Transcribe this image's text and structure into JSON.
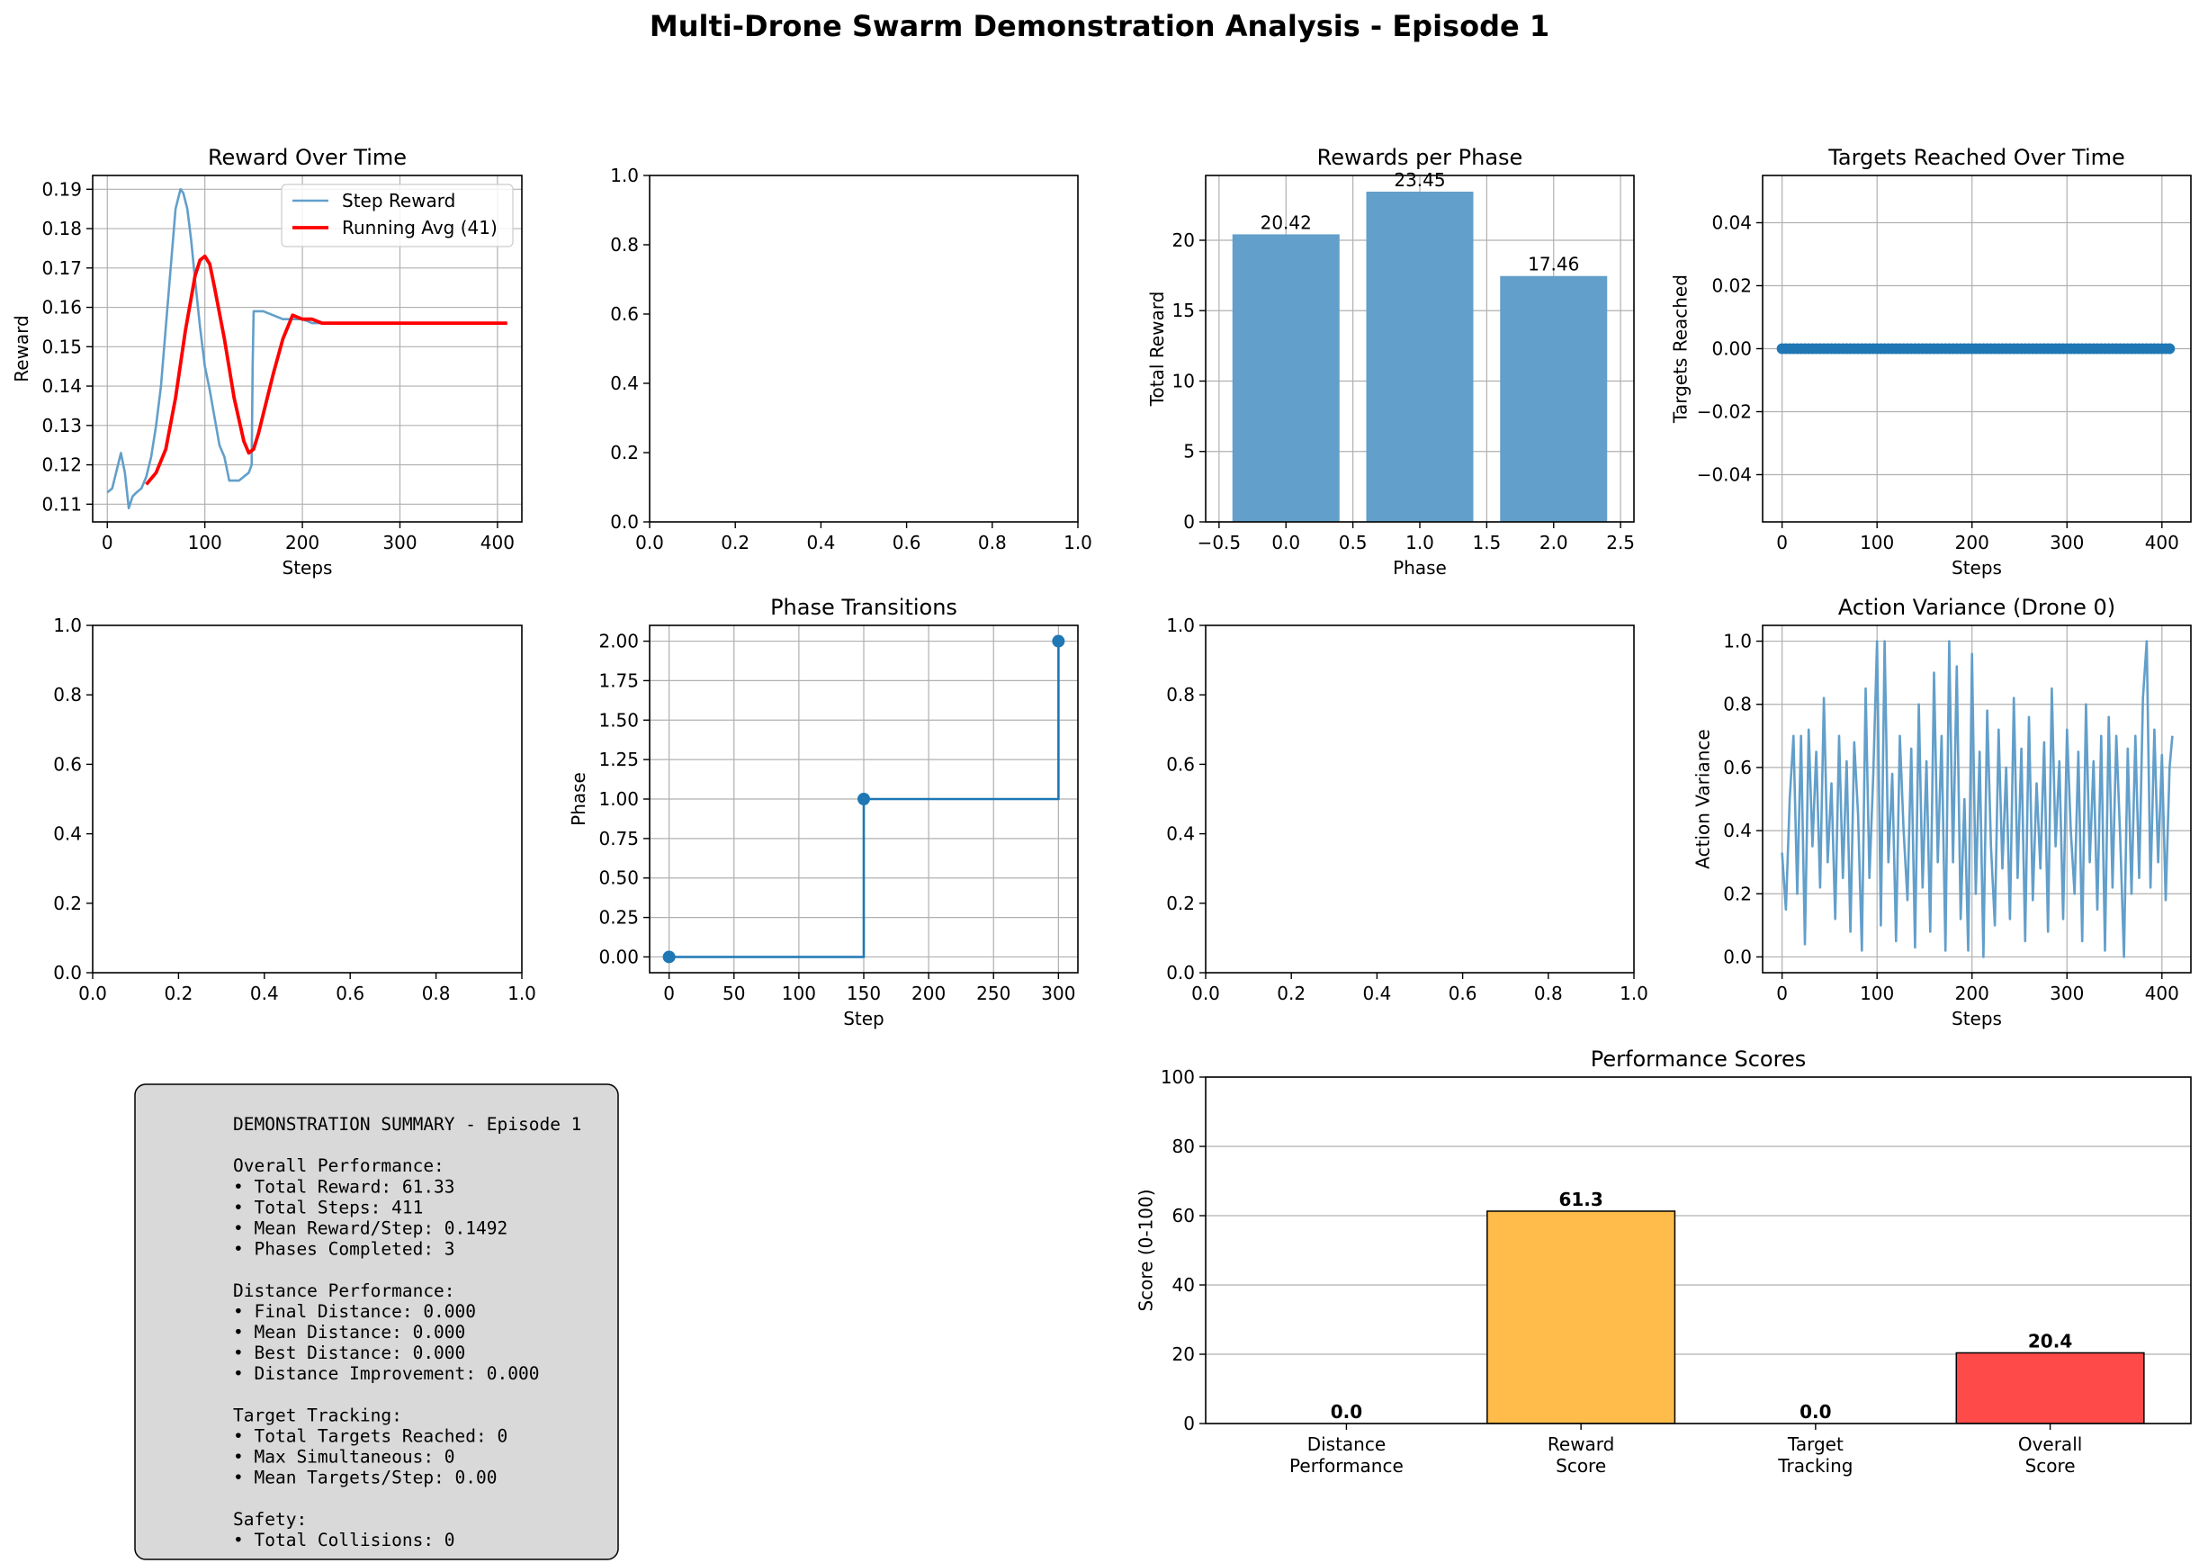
{
  "figure_title": "Multi-Drone Swarm Demonstration Analysis - Episode 1",
  "colors": {
    "blue": "#1f77b4",
    "blue_alpha": "#629fca",
    "red": "#ff0000",
    "grid": "#b0b0b0",
    "summary_bg": "#d9d9d9",
    "orange": "#ffbc4a",
    "score_red": "#ff4a4a"
  },
  "chart_data": [
    {
      "type": "line",
      "title": "Reward Over Time",
      "xlabel": "Steps",
      "ylabel": "Reward",
      "xlim": [
        -15,
        425
      ],
      "ylim": [
        0.1055,
        0.1935
      ],
      "xticks": [
        0,
        100,
        200,
        300,
        400
      ],
      "xtick_labels": [
        "0",
        "100",
        "200",
        "300",
        "400"
      ],
      "yticks": [
        0.11,
        0.12,
        0.13,
        0.14,
        0.15,
        0.16,
        0.17,
        0.18,
        0.19
      ],
      "ytick_labels": [
        "0.11",
        "0.12",
        "0.13",
        "0.14",
        "0.15",
        "0.16",
        "0.17",
        "0.18",
        "0.19"
      ],
      "grid": true,
      "legend": "top-right",
      "series": [
        {
          "name": "Step Reward",
          "color": "#1f77b4",
          "x": [
            0,
            5,
            10,
            14,
            18,
            22,
            26,
            30,
            35,
            40,
            45,
            50,
            55,
            60,
            65,
            70,
            75,
            78,
            82,
            86,
            90,
            95,
            100,
            105,
            110,
            115,
            120,
            125,
            130,
            135,
            140,
            145,
            148,
            149,
            150,
            155,
            160,
            170,
            180,
            190,
            200,
            210,
            220,
            230,
            240,
            260,
            280,
            300,
            330,
            360,
            390,
            410
          ],
          "y": [
            0.113,
            0.114,
            0.119,
            0.123,
            0.118,
            0.109,
            0.112,
            0.113,
            0.114,
            0.117,
            0.122,
            0.13,
            0.14,
            0.155,
            0.17,
            0.185,
            0.19,
            0.189,
            0.185,
            0.177,
            0.167,
            0.155,
            0.145,
            0.139,
            0.132,
            0.125,
            0.122,
            0.116,
            0.116,
            0.116,
            0.117,
            0.118,
            0.12,
            0.145,
            0.159,
            0.159,
            0.159,
            0.158,
            0.157,
            0.157,
            0.157,
            0.156,
            0.156,
            0.156,
            0.156,
            0.156,
            0.156,
            0.156,
            0.156,
            0.156,
            0.156,
            0.156
          ]
        },
        {
          "name": "Running Avg (41)",
          "color": "#ff0000",
          "x": [
            40,
            50,
            60,
            70,
            80,
            90,
            95,
            100,
            105,
            110,
            120,
            130,
            140,
            145,
            150,
            155,
            160,
            170,
            180,
            190,
            200,
            210,
            220,
            240,
            260,
            300,
            350,
            410
          ],
          "y": [
            0.115,
            0.118,
            0.124,
            0.137,
            0.154,
            0.168,
            0.172,
            0.173,
            0.171,
            0.165,
            0.152,
            0.137,
            0.126,
            0.123,
            0.124,
            0.128,
            0.133,
            0.143,
            0.152,
            0.158,
            0.157,
            0.157,
            0.156,
            0.156,
            0.156,
            0.156,
            0.156,
            0.156
          ]
        }
      ]
    },
    {
      "type": "empty",
      "xlim": [
        0,
        1
      ],
      "ylim": [
        0,
        1
      ],
      "xticks": [
        0,
        0.2,
        0.4,
        0.6,
        0.8,
        1.0
      ],
      "xtick_labels": [
        "0.0",
        "0.2",
        "0.4",
        "0.6",
        "0.8",
        "1.0"
      ],
      "yticks": [
        0,
        0.2,
        0.4,
        0.6,
        0.8,
        1.0
      ],
      "ytick_labels": [
        "0.0",
        "0.2",
        "0.4",
        "0.6",
        "0.8",
        "1.0"
      ],
      "grid": false
    },
    {
      "type": "bar",
      "title": "Rewards per Phase",
      "xlabel": "Phase",
      "ylabel": "Total Reward",
      "categories": [
        0,
        1,
        2
      ],
      "values": [
        20.42,
        23.45,
        17.46
      ],
      "value_labels": [
        "20.42",
        "23.45",
        "17.46"
      ],
      "xlim": [
        -0.6,
        2.6
      ],
      "ylim": [
        0,
        24.6
      ],
      "xticks": [
        -0.5,
        0.0,
        0.5,
        1.0,
        1.5,
        2.0,
        2.5
      ],
      "xtick_labels": [
        "−0.5",
        "0.0",
        "0.5",
        "1.0",
        "1.5",
        "2.0",
        "2.5"
      ],
      "yticks": [
        0,
        5,
        10,
        15,
        20
      ],
      "ytick_labels": [
        "0",
        "5",
        "10",
        "15",
        "20"
      ],
      "grid": true
    },
    {
      "type": "line",
      "title": "Targets Reached Over Time",
      "xlabel": "Steps",
      "ylabel": "Targets Reached",
      "xlim": [
        -20.5,
        430.5
      ],
      "ylim": [
        -0.055,
        0.055
      ],
      "xticks": [
        0,
        100,
        200,
        300,
        400
      ],
      "xtick_labels": [
        "0",
        "100",
        "200",
        "300",
        "400"
      ],
      "yticks": [
        -0.04,
        -0.02,
        0.0,
        0.02,
        0.04
      ],
      "ytick_labels": [
        "−0.04",
        "−0.02",
        "0.00",
        "0.02",
        "0.04"
      ],
      "grid": true,
      "series": [
        {
          "color": "#1f77b4",
          "x_range": [
            0,
            410
          ],
          "value": 0,
          "markers": true
        }
      ]
    },
    {
      "type": "empty",
      "xlim": [
        0,
        1
      ],
      "ylim": [
        0,
        1
      ],
      "xticks": [
        0,
        0.2,
        0.4,
        0.6,
        0.8,
        1.0
      ],
      "xtick_labels": [
        "0.0",
        "0.2",
        "0.4",
        "0.6",
        "0.8",
        "1.0"
      ],
      "yticks": [
        0,
        0.2,
        0.4,
        0.6,
        0.8,
        1.0
      ],
      "ytick_labels": [
        "0.0",
        "0.2",
        "0.4",
        "0.6",
        "0.8",
        "1.0"
      ],
      "grid": false
    },
    {
      "type": "line",
      "title": "Phase Transitions",
      "xlabel": "Step",
      "ylabel": "Phase",
      "xlim": [
        -15,
        315
      ],
      "ylim": [
        -0.1,
        2.1
      ],
      "xticks": [
        0,
        50,
        100,
        150,
        200,
        250,
        300
      ],
      "xtick_labels": [
        "0",
        "50",
        "100",
        "150",
        "200",
        "250",
        "300"
      ],
      "yticks": [
        0,
        0.25,
        0.5,
        0.75,
        1.0,
        1.25,
        1.5,
        1.75,
        2.0
      ],
      "ytick_labels": [
        "0.00",
        "0.25",
        "0.50",
        "0.75",
        "1.00",
        "1.25",
        "1.50",
        "1.75",
        "2.00"
      ],
      "grid": true,
      "series": [
        {
          "color": "#1f77b4",
          "step": "post",
          "x": [
            0,
            150,
            300
          ],
          "y": [
            0,
            1,
            2
          ]
        }
      ]
    },
    {
      "type": "empty",
      "xlim": [
        0,
        1
      ],
      "ylim": [
        0,
        1
      ],
      "xticks": [
        0,
        0.2,
        0.4,
        0.6,
        0.8,
        1.0
      ],
      "xtick_labels": [
        "0.0",
        "0.2",
        "0.4",
        "0.6",
        "0.8",
        "1.0"
      ],
      "yticks": [
        0,
        0.2,
        0.4,
        0.6,
        0.8,
        1.0
      ],
      "ytick_labels": [
        "0.0",
        "0.2",
        "0.4",
        "0.6",
        "0.8",
        "1.0"
      ],
      "grid": false
    },
    {
      "type": "line",
      "title": "Action Variance (Drone 0)",
      "xlabel": "Steps",
      "ylabel": "Action Variance",
      "xlim": [
        -20.5,
        430.5
      ],
      "ylim": [
        -0.05,
        1.05
      ],
      "xticks": [
        0,
        100,
        200,
        300,
        400
      ],
      "xtick_labels": [
        "0",
        "100",
        "200",
        "300",
        "400"
      ],
      "yticks": [
        0,
        0.2,
        0.4,
        0.6,
        0.8,
        1.0
      ],
      "ytick_labels": [
        "0.0",
        "0.2",
        "0.4",
        "0.6",
        "0.8",
        "1.0"
      ],
      "grid": true,
      "series": [
        {
          "color": "#1f77b4",
          "x": [
            0,
            4,
            8,
            12,
            16,
            20,
            24,
            28,
            32,
            36,
            40,
            44,
            48,
            52,
            56,
            60,
            64,
            68,
            72,
            76,
            80,
            84,
            88,
            92,
            96,
            100,
            104,
            108,
            112,
            116,
            120,
            124,
            128,
            132,
            136,
            140,
            144,
            148,
            152,
            156,
            160,
            164,
            168,
            172,
            176,
            180,
            184,
            188,
            192,
            196,
            200,
            204,
            208,
            212,
            216,
            220,
            224,
            228,
            232,
            236,
            240,
            244,
            248,
            252,
            256,
            260,
            264,
            268,
            272,
            276,
            280,
            284,
            288,
            292,
            296,
            300,
            304,
            308,
            312,
            316,
            320,
            324,
            328,
            332,
            336,
            340,
            344,
            348,
            352,
            356,
            360,
            364,
            368,
            372,
            376,
            380,
            384,
            388,
            392,
            396,
            400,
            404,
            408,
            411
          ],
          "y": [
            0.33,
            0.15,
            0.5,
            0.7,
            0.2,
            0.7,
            0.04,
            0.72,
            0.35,
            0.65,
            0.22,
            0.82,
            0.3,
            0.55,
            0.12,
            0.7,
            0.25,
            0.62,
            0.08,
            0.68,
            0.45,
            0.02,
            0.85,
            0.25,
            0.58,
            1.0,
            0.1,
            1.0,
            0.3,
            0.58,
            0.05,
            0.7,
            0.4,
            0.18,
            0.66,
            0.03,
            0.8,
            0.22,
            0.62,
            0.08,
            0.9,
            0.3,
            0.7,
            0.02,
            1.0,
            0.3,
            0.92,
            0.12,
            0.5,
            0.02,
            0.96,
            0.2,
            0.65,
            0.0,
            0.78,
            0.35,
            0.1,
            0.72,
            0.28,
            0.6,
            0.12,
            0.82,
            0.25,
            0.66,
            0.05,
            0.76,
            0.18,
            0.55,
            0.28,
            0.68,
            0.08,
            0.85,
            0.35,
            0.62,
            0.12,
            0.72,
            0.4,
            0.2,
            0.65,
            0.05,
            0.8,
            0.3,
            0.62,
            0.15,
            0.7,
            0.02,
            0.76,
            0.22,
            0.7,
            0.38,
            0.0,
            0.66,
            0.2,
            0.7,
            0.25,
            0.82,
            1.0,
            0.22,
            0.72,
            0.3,
            0.64,
            0.18,
            0.6,
            0.7
          ]
        }
      ]
    },
    {
      "type": "bar",
      "title": "Performance Scores",
      "ylabel": "Score (0-100)",
      "categories": [
        "Distance\nPerformance",
        "Reward\nScore",
        "Target\nTracking",
        "Overall\nScore"
      ],
      "values": [
        0.0,
        61.3,
        0.0,
        20.4
      ],
      "value_labels": [
        "0.0",
        "61.3",
        "0.0",
        "20.4"
      ],
      "bar_colors": [
        "#7bc97b",
        "#ffbc4a",
        "#6aa8d8",
        "#ff4a4a"
      ],
      "xlim": [
        -0.6,
        3.6
      ],
      "ylim": [
        0,
        100
      ],
      "yticks": [
        0,
        20,
        40,
        60,
        80,
        100
      ],
      "ytick_labels": [
        "0",
        "20",
        "40",
        "60",
        "80",
        "100"
      ],
      "grid": true
    }
  ],
  "summary": {
    "lines": [
      "DEMONSTRATION SUMMARY - Episode 1",
      "",
      "Overall Performance:",
      "• Total Reward: 61.33",
      "• Total Steps: 411",
      "• Mean Reward/Step: 0.1492",
      "• Phases Completed: 3",
      "",
      "Distance Performance:",
      "• Final Distance: 0.000",
      "• Mean Distance: 0.000",
      "• Best Distance: 0.000",
      "• Distance Improvement: 0.000",
      "",
      "Target Tracking:",
      "• Total Targets Reached: 0",
      "• Max Simultaneous: 0",
      "• Mean Targets/Step: 0.00",
      "",
      "Safety:",
      "• Total Collisions: 0"
    ]
  }
}
